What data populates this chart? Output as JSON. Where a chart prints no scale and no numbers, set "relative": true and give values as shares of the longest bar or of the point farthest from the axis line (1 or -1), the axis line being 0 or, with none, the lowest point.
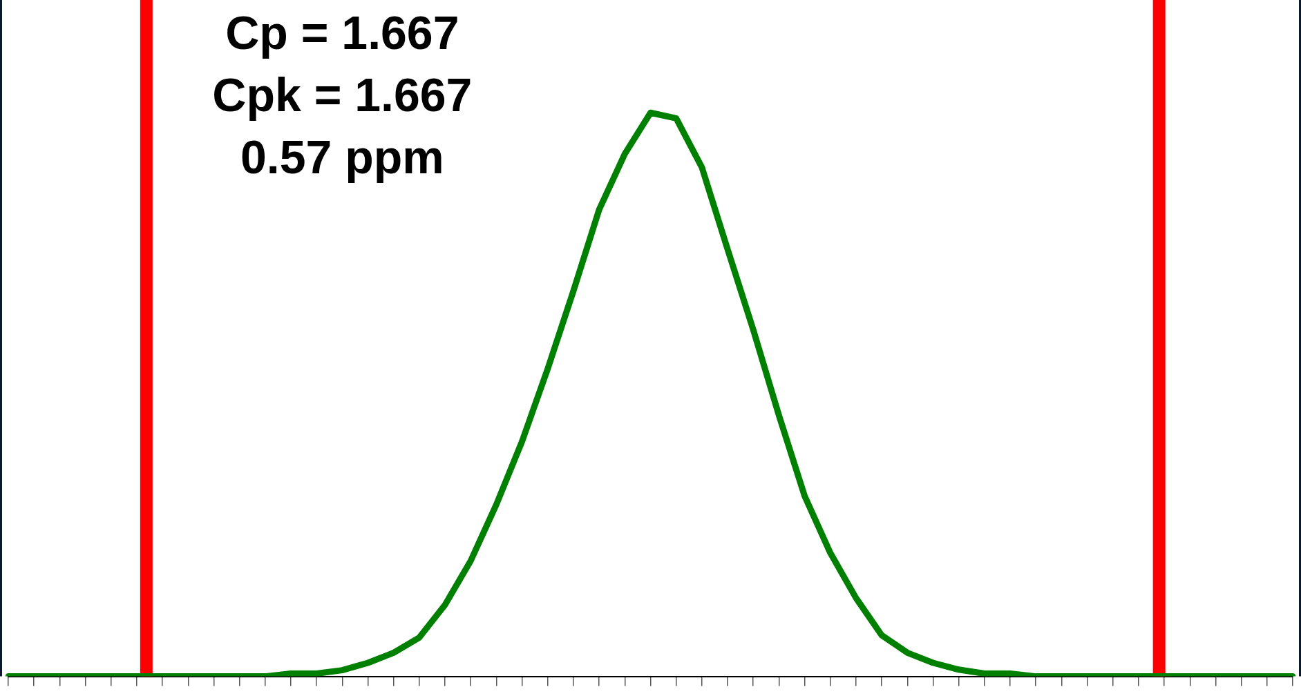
{
  "chart_data": {
    "type": "line",
    "relative": true,
    "color": "#008000",
    "marker": "none",
    "line_style": "solid",
    "grid": false,
    "legend": false,
    "categories": [
      null,
      null,
      null,
      null,
      null,
      null,
      null,
      null,
      null,
      null,
      null,
      null,
      null,
      null,
      null,
      null,
      null,
      null,
      null,
      null,
      null,
      null,
      null,
      null,
      null,
      null,
      null,
      null,
      null,
      null,
      null,
      null,
      null,
      null,
      null,
      null,
      null,
      null,
      null,
      null,
      null,
      null,
      null,
      null,
      null,
      null,
      null,
      null,
      null,
      null,
      null
    ],
    "values": [
      0,
      0,
      0,
      0,
      0,
      0,
      0,
      0,
      0,
      0,
      0,
      0.005,
      0.005,
      0.011,
      0.024,
      0.042,
      0.069,
      0.127,
      0.205,
      0.305,
      0.417,
      0.546,
      0.684,
      0.828,
      0.927,
      1,
      0.99,
      0.903,
      0.758,
      0.615,
      0.463,
      0.32,
      0.219,
      0.139,
      0.073,
      0.042,
      0.024,
      0.012,
      0.005,
      0.005,
      0,
      0,
      0,
      0,
      0,
      0,
      0,
      0,
      0,
      0,
      0
    ],
    "annotations": [
      "Cp = 1.667",
      "Cpk = 1.667",
      "0.57 ppm"
    ]
  }
}
